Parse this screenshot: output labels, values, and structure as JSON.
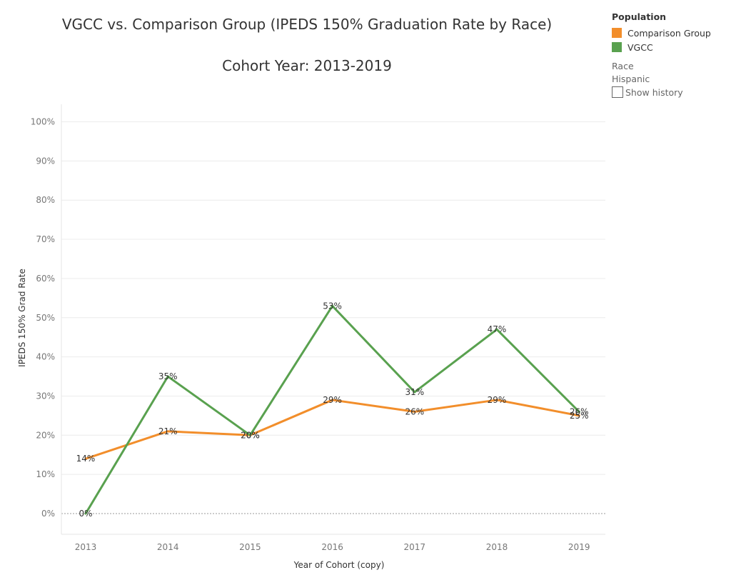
{
  "title_line1": "VGCC vs. Comparison Group (IPEDS 150% Graduation Rate by Race)",
  "title_line2": "Cohort Year: 2013-2019",
  "legend": {
    "header": "Population",
    "items": [
      {
        "label": "Comparison Group",
        "color": "#F28E2B"
      },
      {
        "label": "VGCC",
        "color": "#59A14F"
      }
    ],
    "filter_label": "Race",
    "filter_value": "Hispanic",
    "checkbox_label": "Show history"
  },
  "chart_data": {
    "type": "line",
    "x": [
      "2013",
      "2014",
      "2015",
      "2016",
      "2017",
      "2018",
      "2019"
    ],
    "series": [
      {
        "name": "Comparison Group",
        "color": "#F28E2B",
        "values": [
          14,
          21,
          20,
          29,
          26,
          29,
          25
        ],
        "labels": [
          "14%",
          "21%",
          "20%",
          "29%",
          "26%",
          "29%",
          "25%"
        ]
      },
      {
        "name": "VGCC",
        "color": "#59A14F",
        "values": [
          0,
          35,
          20,
          53,
          31,
          47,
          26
        ],
        "labels": [
          "0%",
          "35%",
          "20%",
          "53%",
          "31%",
          "47%",
          "26%"
        ]
      }
    ],
    "xlabel": "Year of Cohort (copy)",
    "ylabel": "IPEDS 150%  Grad Rate",
    "ylim": [
      0,
      100
    ],
    "yticks": [
      "0%",
      "10%",
      "20%",
      "30%",
      "40%",
      "50%",
      "60%",
      "70%",
      "80%",
      "90%",
      "100%"
    ],
    "grid": true
  }
}
